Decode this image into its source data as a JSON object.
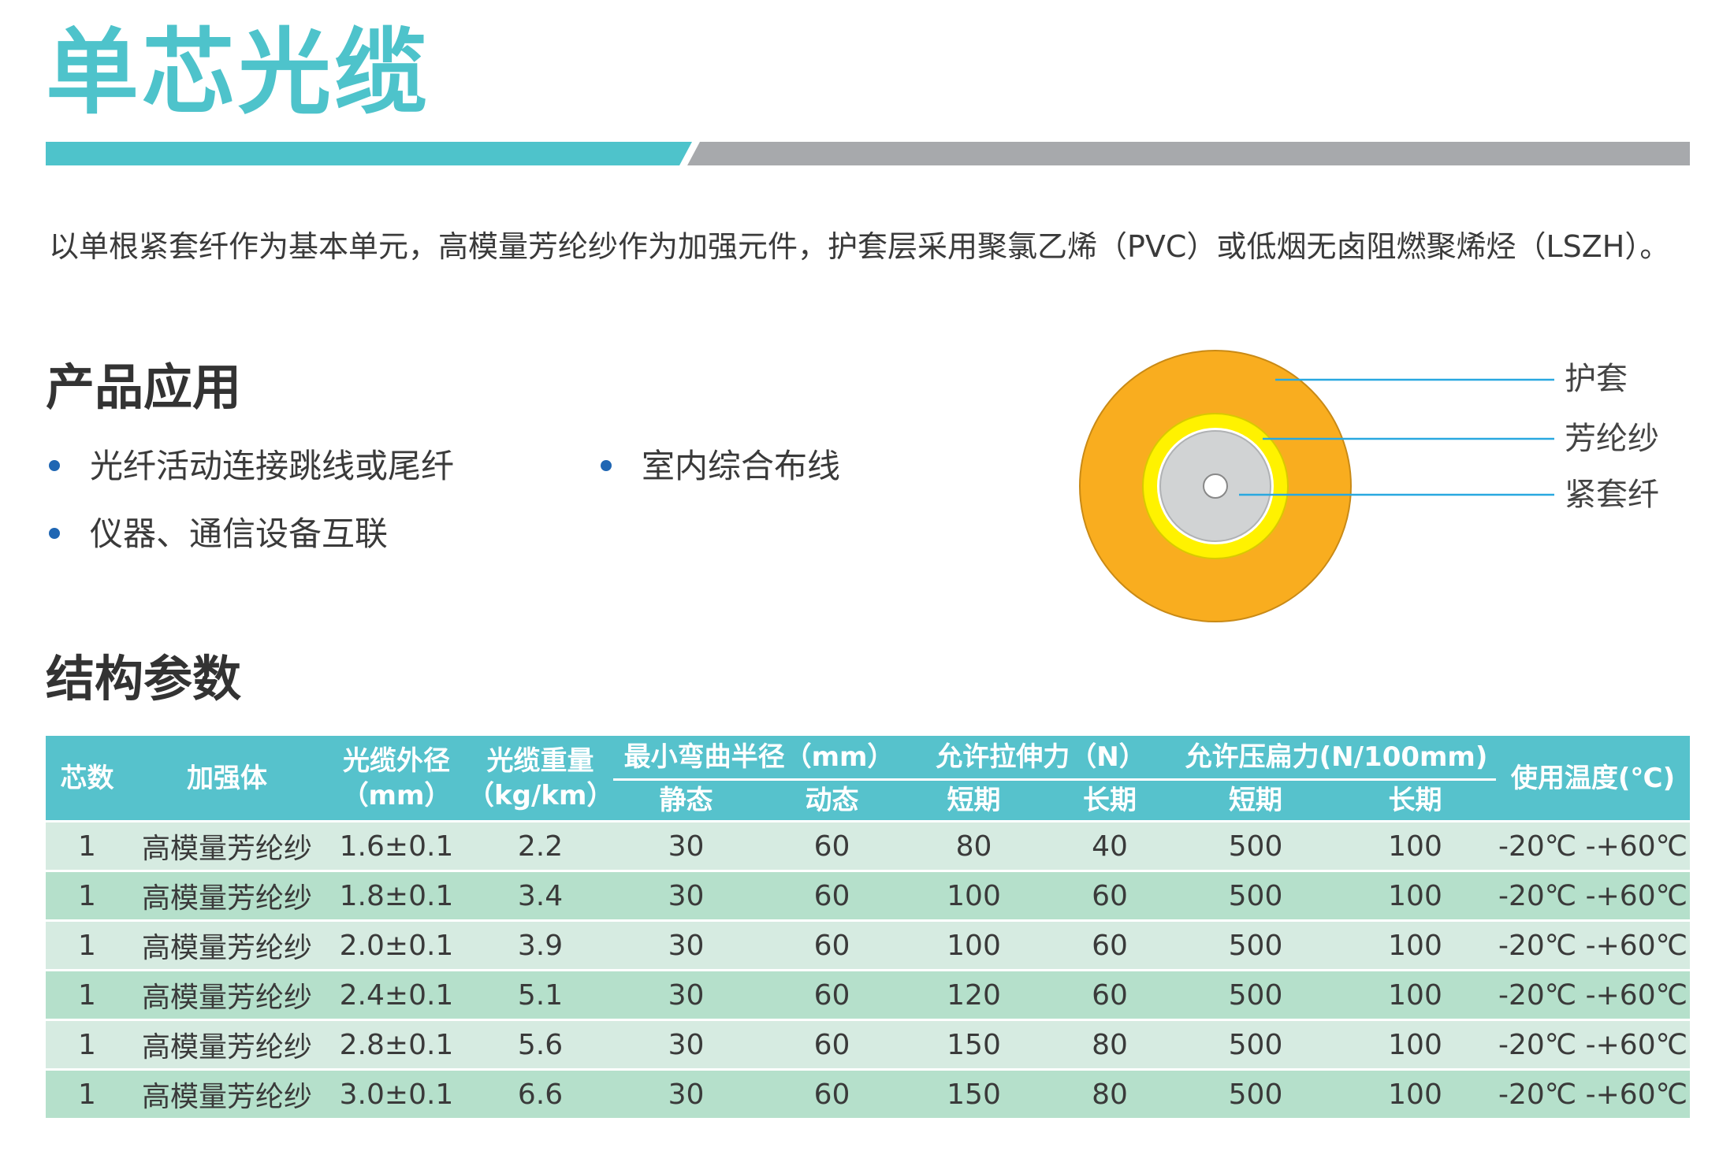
{
  "title": "单芯光缆",
  "colors": {
    "accent": "#4ec3cb",
    "bar_gray": "#a7a9ac",
    "jacket": "#f9ad1f",
    "aramid": "#fff200",
    "fiber": "#d1d3d4",
    "table_header": "#56c2cc",
    "row_light": "#d6ebe1",
    "row_dark": "#b5e0cb",
    "bullet": "#1f66b3"
  },
  "intro": "以单根紧套纤作为基本单元，高模量芳纶纱作为加强元件，护套层采用聚氯乙烯（PVC）或低烟无卤阻燃聚烯烃（LSZH）。",
  "applications": {
    "heading": "产品应用",
    "items": [
      "光纤活动连接跳线或尾纤",
      "室内综合布线",
      "仪器、通信设备互联"
    ]
  },
  "diagram": {
    "labels": [
      "护套",
      "芳纶纱",
      "紧套纤"
    ]
  },
  "structure": {
    "heading": "结构参数",
    "headers": {
      "cores": "芯数",
      "strength": "加强体",
      "od_line1": "光缆外径",
      "od_line2": "（mm）",
      "weight_line1": "光缆重量",
      "weight_line2": "（kg/km）",
      "bend": "最小弯曲半径（mm）",
      "bend_static": "静态",
      "bend_dynamic": "动态",
      "tensile": "允许拉伸力（N）",
      "tensile_short": "短期",
      "tensile_long": "长期",
      "crush": "允许压扁力(N/100mm)",
      "crush_short": "短期",
      "crush_long": "长期",
      "temp": "使用温度(℃)"
    },
    "rows": [
      [
        "1",
        "高模量芳纶纱",
        "1.6±0.1",
        "2.2",
        "30",
        "60",
        "80",
        "40",
        "500",
        "100",
        "-20℃ -+60℃"
      ],
      [
        "1",
        "高模量芳纶纱",
        "1.8±0.1",
        "3.4",
        "30",
        "60",
        "100",
        "60",
        "500",
        "100",
        "-20℃ -+60℃"
      ],
      [
        "1",
        "高模量芳纶纱",
        "2.0±0.1",
        "3.9",
        "30",
        "60",
        "100",
        "60",
        "500",
        "100",
        "-20℃ -+60℃"
      ],
      [
        "1",
        "高模量芳纶纱",
        "2.4±0.1",
        "5.1",
        "30",
        "60",
        "120",
        "60",
        "500",
        "100",
        "-20℃ -+60℃"
      ],
      [
        "1",
        "高模量芳纶纱",
        "2.8±0.1",
        "5.6",
        "30",
        "60",
        "150",
        "80",
        "500",
        "100",
        "-20℃ -+60℃"
      ],
      [
        "1",
        "高模量芳纶纱",
        "3.0±0.1",
        "6.6",
        "30",
        "60",
        "150",
        "80",
        "500",
        "100",
        "-20℃ -+60℃"
      ]
    ]
  }
}
